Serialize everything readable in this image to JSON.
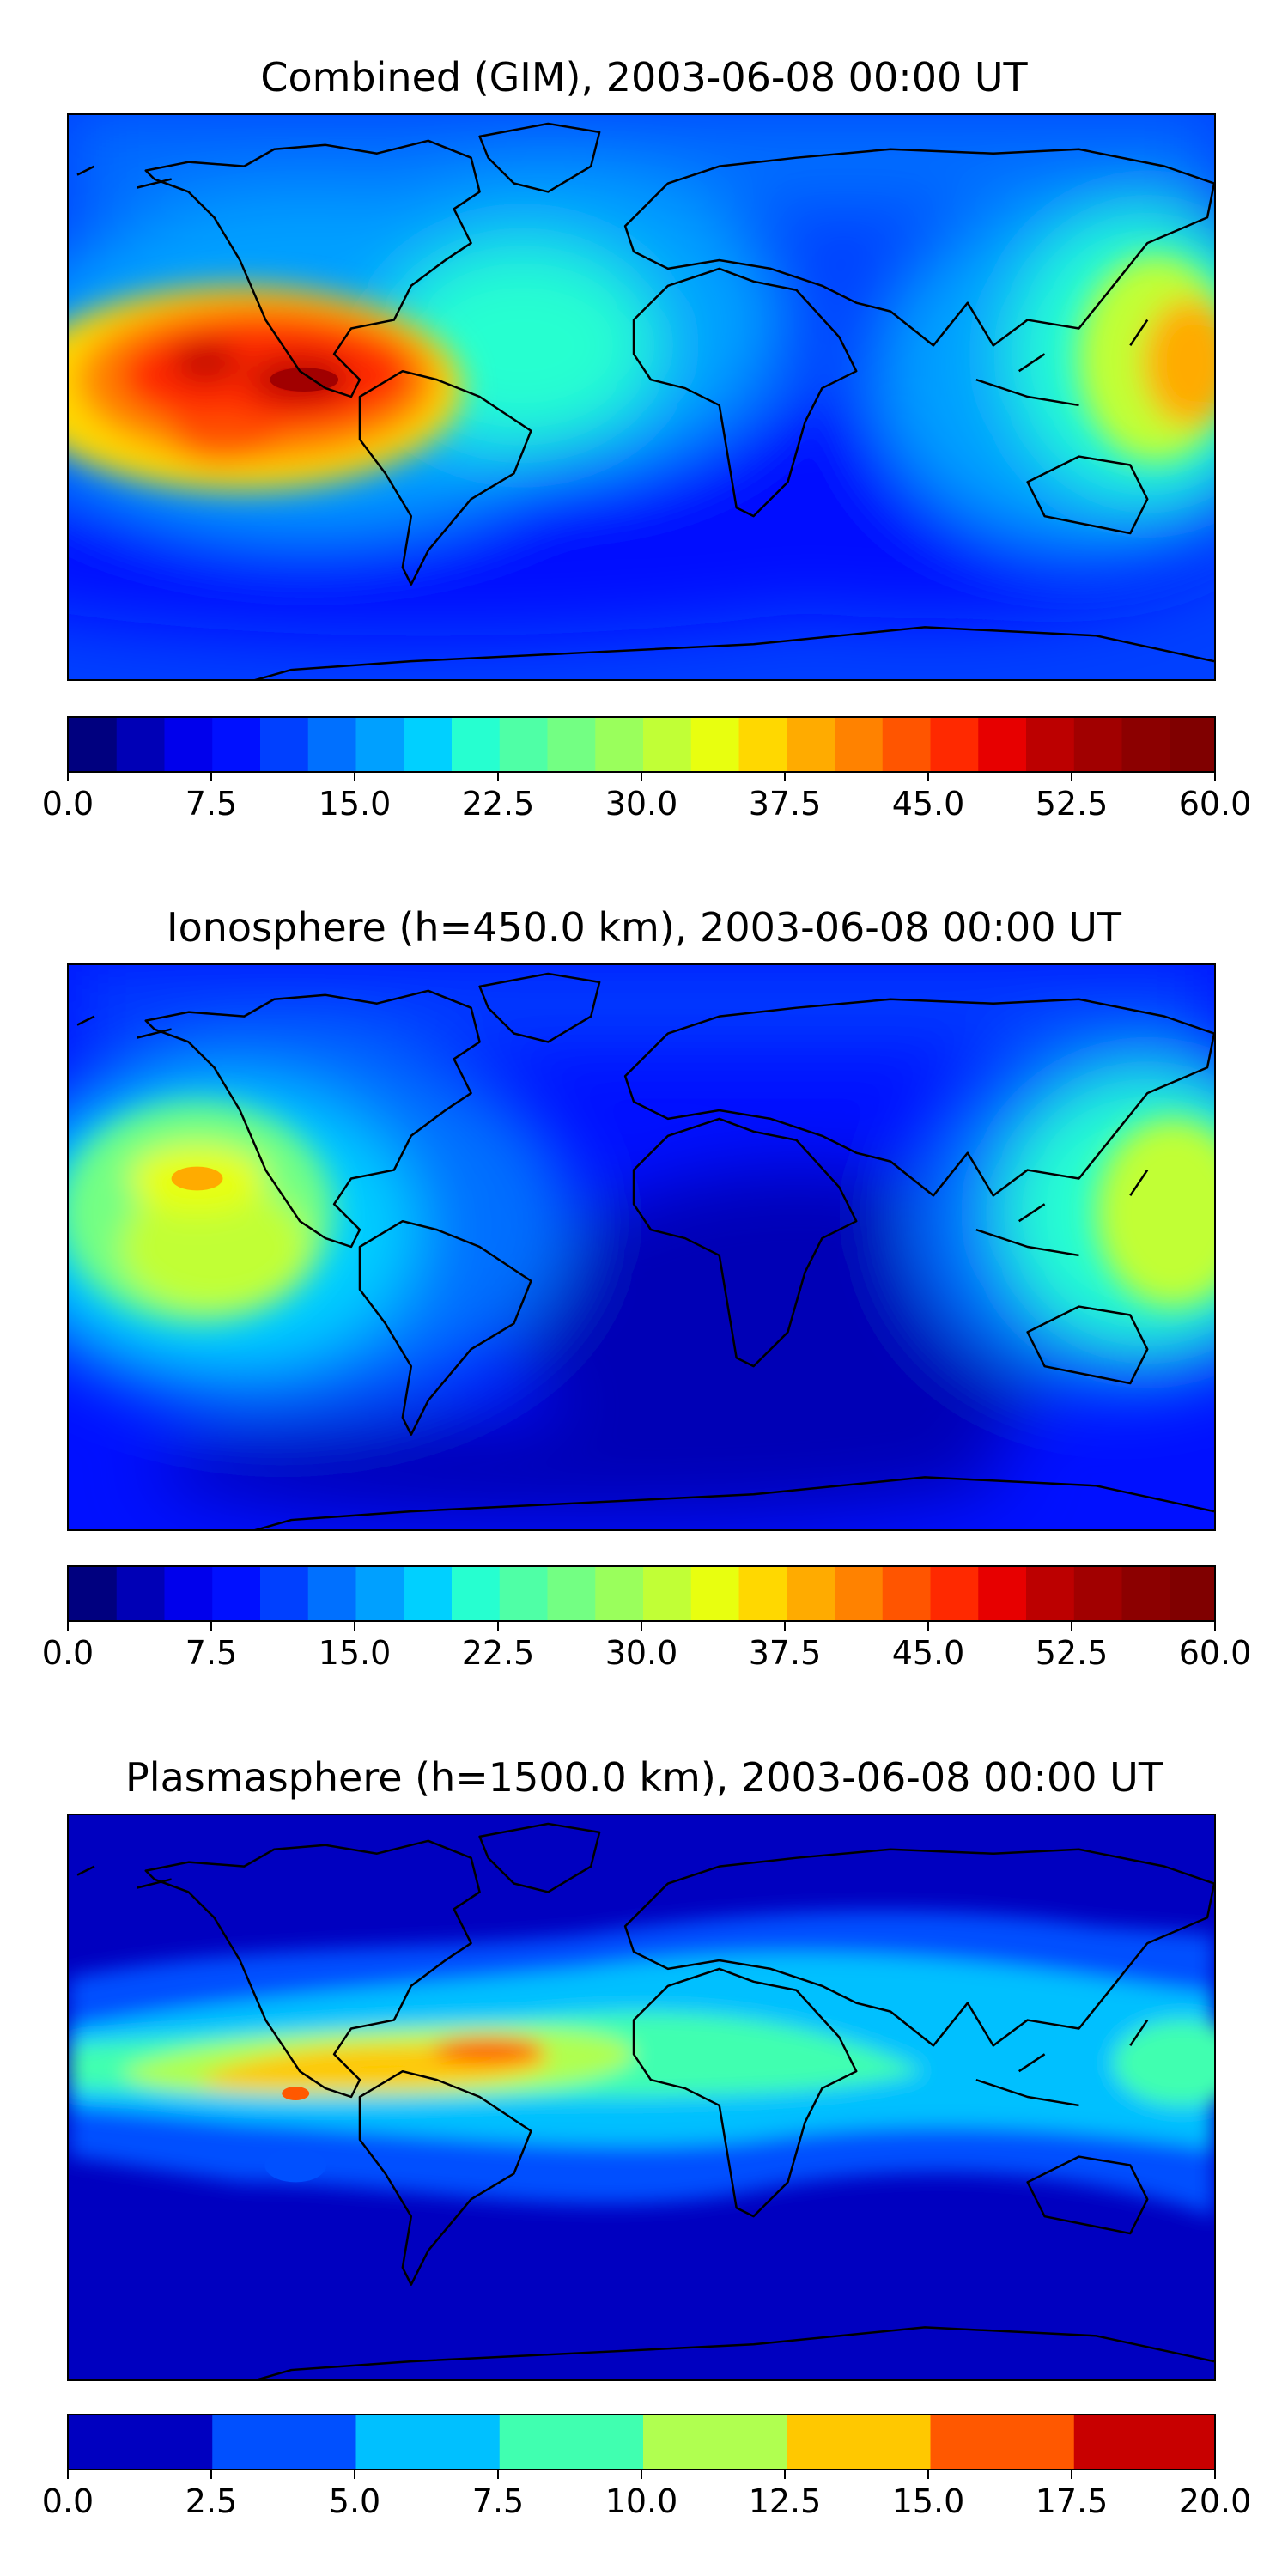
{
  "chart_data": [
    {
      "type": "heatmap",
      "title": "Combined (GIM), 2003-06-08 00:00 UT",
      "colorbar": {
        "range": [
          0,
          60
        ],
        "levels": 24,
        "ticks": [
          "0.0",
          "7.5",
          "15.0",
          "22.5",
          "30.0",
          "37.5",
          "45.0",
          "52.5",
          "60.0"
        ],
        "colors": [
          "#00007f",
          "#0000b6",
          "#0000ec",
          "#0010ff",
          "#0040ff",
          "#0070ff",
          "#00a0ff",
          "#00d0ff",
          "#26ffd0",
          "#4fffa6",
          "#73ff83",
          "#9aff5c",
          "#c1ff36",
          "#e8ff0f",
          "#ffd800",
          "#ffab00",
          "#ff8200",
          "#ff5500",
          "#ff2900",
          "#e70000",
          "#bc0000",
          "#a10000",
          "#8c0000",
          "#800000"
        ]
      },
      "features": [
        {
          "name": "eastern Pacific crest",
          "value": 57
        },
        {
          "name": "western Pacific / east Asia crest",
          "value": 45
        },
        {
          "name": "southern Atlantic / Indian Ocean minimum",
          "value": 5
        }
      ]
    },
    {
      "type": "heatmap",
      "title": "Ionosphere  (h=450.0 km), 2003-06-08 00:00 UT",
      "colorbar": {
        "range": [
          0,
          60
        ],
        "levels": 24,
        "ticks": [
          "0.0",
          "7.5",
          "15.0",
          "22.5",
          "30.0",
          "37.5",
          "45.0",
          "52.5",
          "60.0"
        ],
        "colors": [
          "#00007f",
          "#0000b6",
          "#0000ec",
          "#0010ff",
          "#0040ff",
          "#0070ff",
          "#00a0ff",
          "#00d0ff",
          "#26ffd0",
          "#4fffa6",
          "#73ff83",
          "#9aff5c",
          "#c1ff36",
          "#e8ff0f",
          "#ffd800",
          "#ffab00",
          "#ff8200",
          "#ff5500",
          "#ff2900",
          "#e70000",
          "#bc0000",
          "#a10000",
          "#8c0000",
          "#800000"
        ]
      },
      "features": [
        {
          "name": "eastern Pacific crest",
          "value": 42
        },
        {
          "name": "western Pacific / east Asia crest",
          "value": 36
        },
        {
          "name": "Africa / Indian Ocean minimum",
          "value": 3
        }
      ]
    },
    {
      "type": "heatmap",
      "title": "Plasmasphere (h=1500.0 km), 2003-06-08 00:00 UT",
      "colorbar": {
        "range": [
          0,
          20
        ],
        "levels": 8,
        "ticks": [
          "0.0",
          "2.5",
          "5.0",
          "7.5",
          "10.0",
          "12.5",
          "15.0",
          "17.5",
          "20.0"
        ],
        "colors": [
          "#0000c0",
          "#0050ff",
          "#00c0ff",
          "#40ffb0",
          "#b0ff50",
          "#ffc800",
          "#ff5800",
          "#c80000"
        ]
      },
      "features": [
        {
          "name": "tropical Atlantic / South America band",
          "value": 16
        },
        {
          "name": "equatorial band",
          "value": 9
        },
        {
          "name": "high latitudes",
          "value": 1
        }
      ]
    }
  ]
}
